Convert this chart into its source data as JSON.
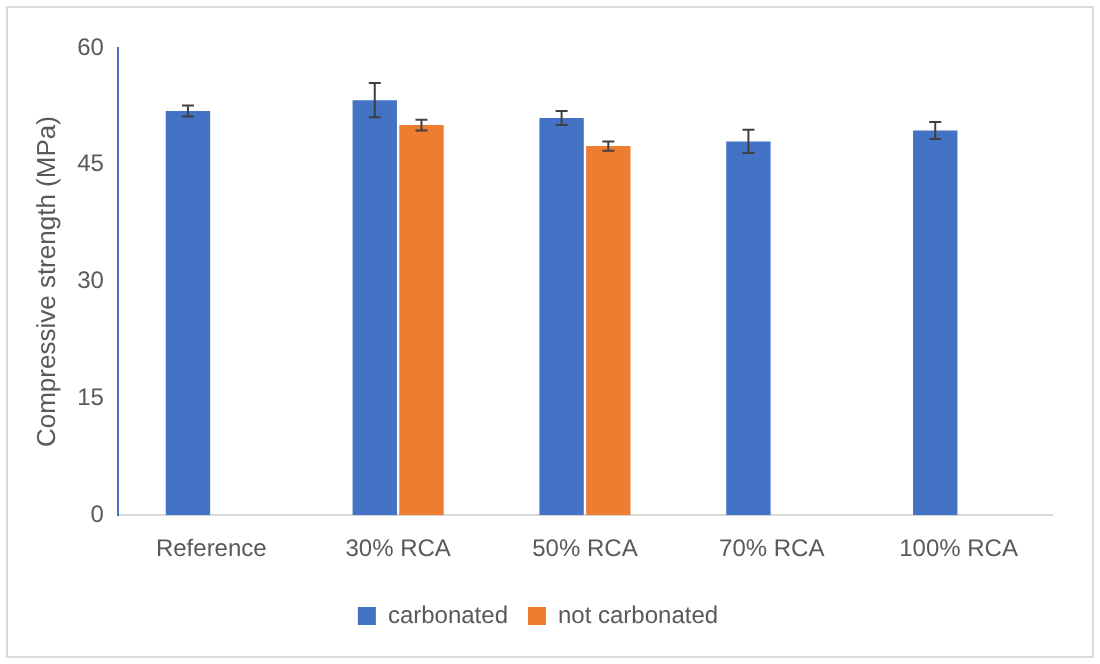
{
  "chart_data": {
    "type": "bar",
    "ylabel": "Compressive strength (MPa)",
    "categories": [
      "Reference",
      "30% RCA",
      "50% RCA",
      "70% RCA",
      "100% RCA"
    ],
    "series": [
      {
        "name": "carbonated",
        "color": "#4472c4",
        "values": [
          51.9,
          53.3,
          51.0,
          48.0,
          49.4
        ],
        "errors": [
          0.7,
          2.2,
          0.9,
          1.5,
          1.1
        ]
      },
      {
        "name": "not carbonated",
        "color": "#ed7d31",
        "values": [
          null,
          50.1,
          47.4,
          null,
          null
        ],
        "errors": [
          null,
          0.7,
          0.6,
          null,
          null
        ]
      }
    ],
    "ylim": [
      0,
      60
    ],
    "yticks": [
      0,
      15,
      30,
      45,
      60
    ],
    "grid": false,
    "legend": "bottom"
  }
}
